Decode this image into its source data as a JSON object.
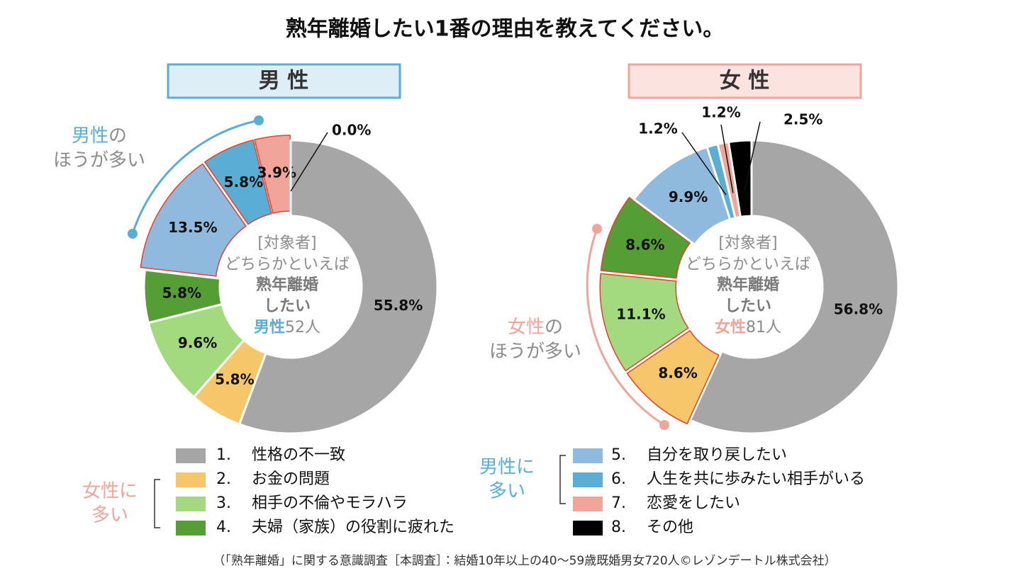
{
  "title": "熟年離婚したい1番の理由を教えてください。",
  "source": "（「熟年離婚」に関する意識調査［本調査］：結婚10年以上の40～59歳既婚男女720人©レゾンデートル株式会社）",
  "legend": {
    "numbers": [
      "1.",
      "2.",
      "3.",
      "4.",
      "5.",
      "6.",
      "7.",
      "8."
    ],
    "labels": [
      "性格の不一致",
      "お金の問題",
      "相手の不倫やモラハラ",
      "夫婦（家族）の役割に疲れた",
      "自分を取り戻したい",
      "人生を共に歩みたい相手がいる",
      "恋愛をしたい",
      "その他"
    ],
    "colors": [
      "#a6a6a6",
      "#f5c76a",
      "#a3d97f",
      "#559e35",
      "#8fb9dd",
      "#5aaed6",
      "#f0a49a",
      "#000000"
    ],
    "groups": [
      {
        "label": [
          "女性に",
          "多い"
        ],
        "color": "#f0a49a",
        "items": [
          1,
          2,
          3
        ]
      },
      {
        "label": [
          "男性に",
          "多い"
        ],
        "color": "#5aaed6",
        "items": [
          4,
          5,
          6
        ]
      }
    ]
  },
  "chart_data": [
    {
      "type": "donut",
      "title": "男 性",
      "accent_color": "#5aaed6",
      "values": [
        55.8,
        5.8,
        9.6,
        5.8,
        13.5,
        5.8,
        3.9,
        0.0
      ],
      "value_labels": [
        "55.8%",
        "5.8%",
        "9.6%",
        "5.8%",
        "13.5%",
        "5.8%",
        "3.9%",
        "0.0%"
      ],
      "highlight": [
        4,
        5,
        6
      ],
      "center_text": [
        "[対象者]",
        "どちらかといえば",
        "熟年離婚",
        "したい"
      ],
      "center_group": "男性",
      "center_count": "52人",
      "annotation": {
        "highlight": "男性",
        "rest": "の",
        "line2": "ほうが多い"
      }
    },
    {
      "type": "donut",
      "title": "女 性",
      "accent_color": "#f0a49a",
      "values": [
        56.8,
        8.6,
        11.1,
        8.6,
        9.9,
        1.2,
        1.2,
        2.5
      ],
      "value_labels": [
        "56.8%",
        "8.6%",
        "11.1%",
        "8.6%",
        "9.9%",
        "1.2%",
        "1.2%",
        "2.5%"
      ],
      "highlight": [
        1,
        2,
        3
      ],
      "center_text": [
        "[対象者]",
        "どちらかといえば",
        "熟年離婚",
        "したい"
      ],
      "center_group": "女性",
      "center_count": "81人",
      "annotation": {
        "highlight": "女性",
        "rest": "の",
        "line2": "ほうが多い"
      }
    }
  ]
}
